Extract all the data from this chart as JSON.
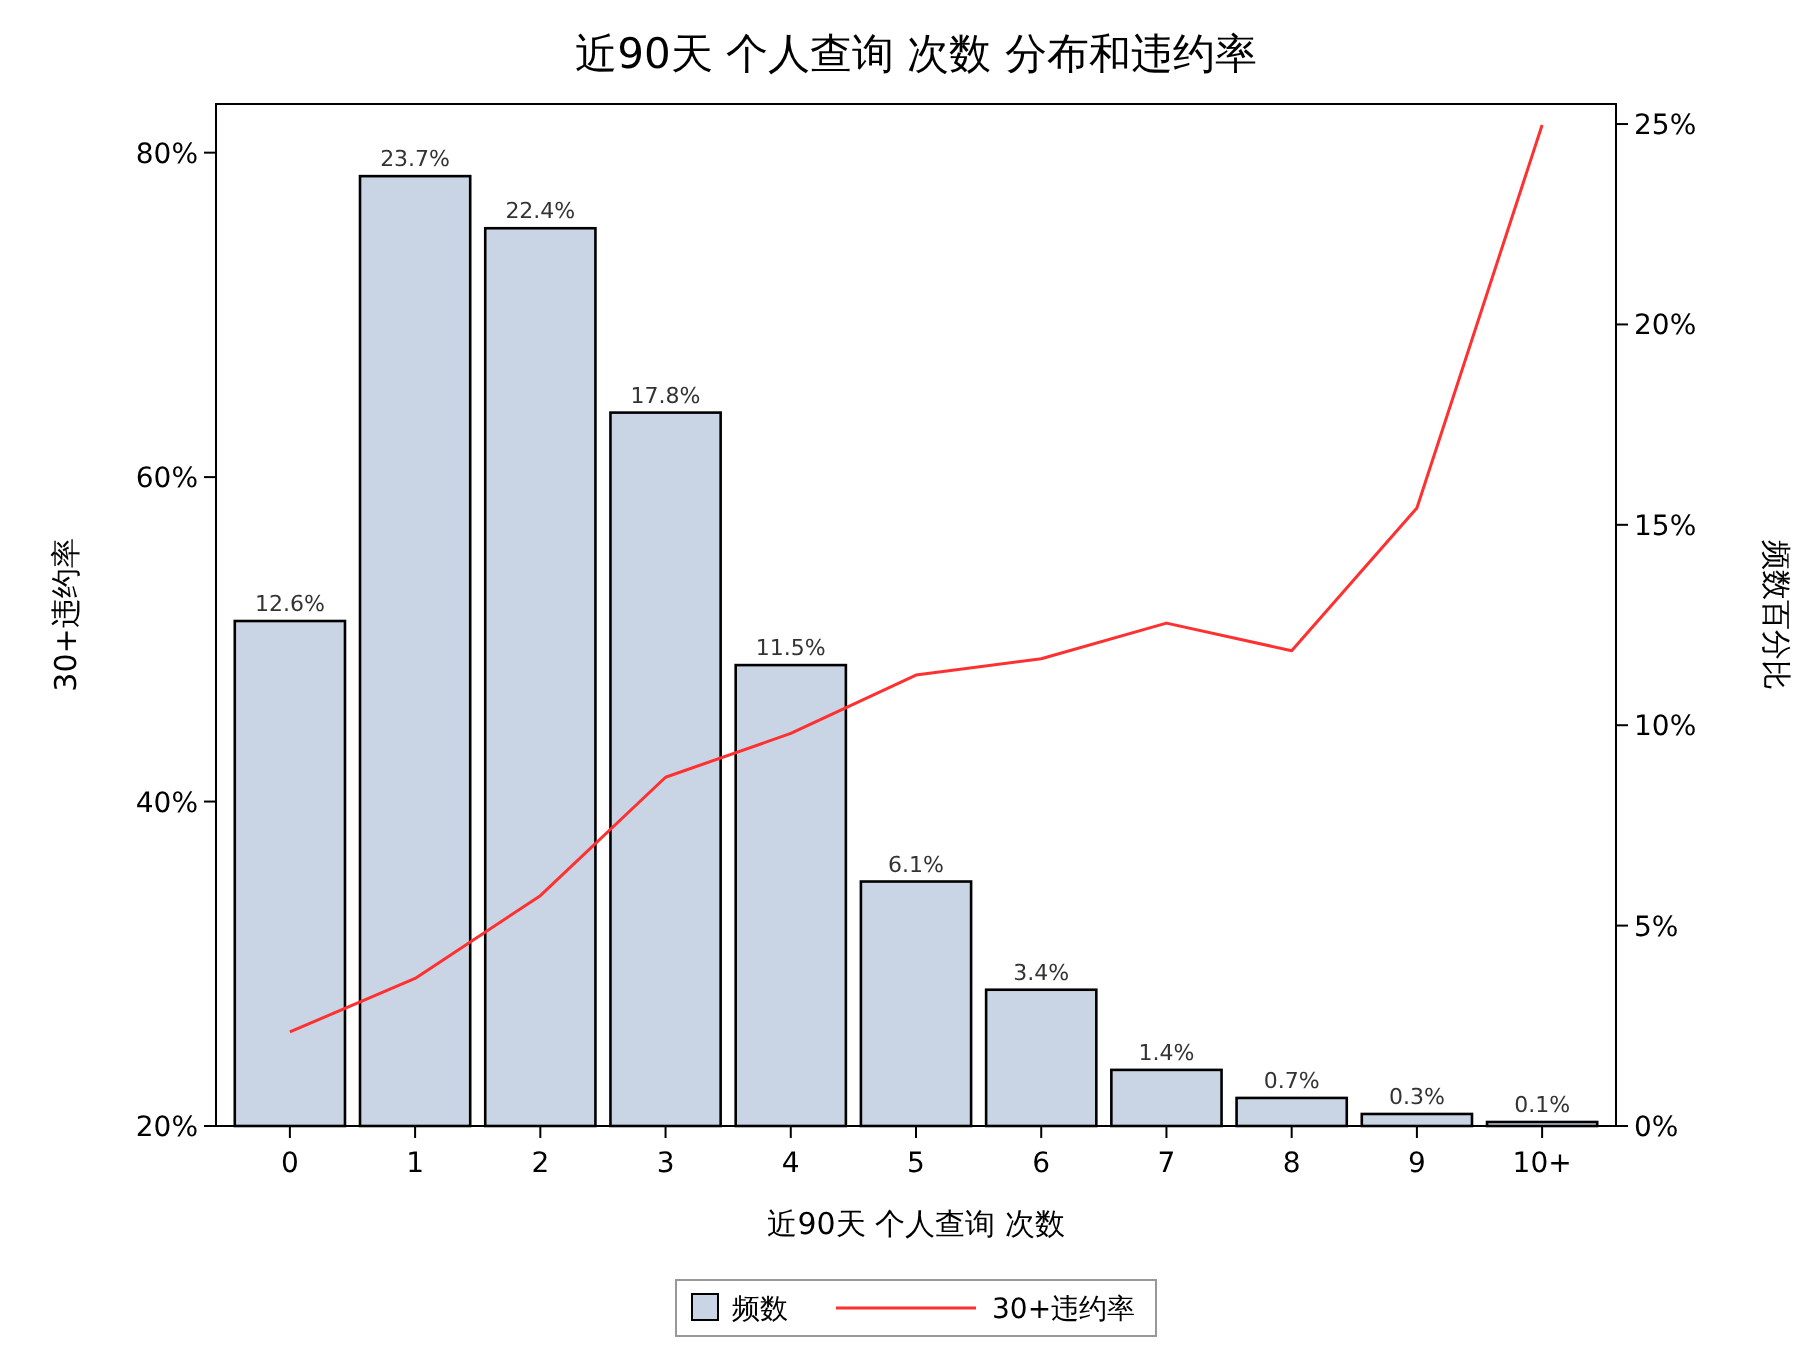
{
  "chart_data": {
    "type": "bar",
    "title": "近90天 个人查询 次数 分布和违约率",
    "xlabel": "近90天 个人查询 次数",
    "ylabel": "30+违约率",
    "y2label": "频数百分比",
    "categories": [
      "0",
      "1",
      "2",
      "3",
      "4",
      "5",
      "6",
      "7",
      "8",
      "9",
      "10+"
    ],
    "series": [
      {
        "name": "频数",
        "axis": "y2",
        "color": "#c9d4e4",
        "values": [
          12.6,
          23.7,
          22.4,
          17.8,
          11.5,
          6.1,
          3.4,
          1.4,
          0.7,
          0.3,
          0.1
        ],
        "value_labels": [
          "12.6%",
          "23.7%",
          "22.4%",
          "17.8%",
          "11.5%",
          "6.1%",
          "3.4%",
          "1.4%",
          "0.7%",
          "0.3%",
          "0.1%"
        ]
      },
      {
        "name": "30+违约率",
        "type": "line",
        "color": "#ff3030",
        "values": [
          25.8,
          29.1,
          34.2,
          41.5,
          44.2,
          47.8,
          48.8,
          51.0,
          49.3,
          58.1,
          81.7
        ]
      }
    ],
    "ylim": [
      20,
      83
    ],
    "yticks": [
      {
        "value": 20,
        "label": "20%"
      },
      {
        "value": 40,
        "label": "40%"
      },
      {
        "value": 60,
        "label": "60%"
      },
      {
        "value": 80,
        "label": "80%"
      }
    ],
    "y2lim": [
      0,
      25.5
    ],
    "y2ticks": [
      {
        "value": 0,
        "label": "0%"
      },
      {
        "value": 5,
        "label": "5%"
      },
      {
        "value": 10,
        "label": "10%"
      },
      {
        "value": 15,
        "label": "15%"
      },
      {
        "value": 20,
        "label": "20%"
      },
      {
        "value": 25,
        "label": "25%"
      }
    ],
    "grid": false,
    "legend": "bottom"
  }
}
